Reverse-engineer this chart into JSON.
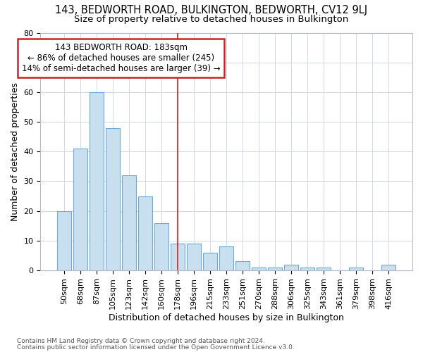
{
  "title": "143, BEDWORTH ROAD, BULKINGTON, BEDWORTH, CV12 9LJ",
  "subtitle": "Size of property relative to detached houses in Bulkington",
  "xlabel": "Distribution of detached houses by size in Bulkington",
  "ylabel": "Number of detached properties",
  "bar_labels": [
    "50sqm",
    "68sqm",
    "87sqm",
    "105sqm",
    "123sqm",
    "142sqm",
    "160sqm",
    "178sqm",
    "196sqm",
    "215sqm",
    "233sqm",
    "251sqm",
    "270sqm",
    "288sqm",
    "306sqm",
    "325sqm",
    "343sqm",
    "361sqm",
    "379sqm",
    "398sqm",
    "416sqm"
  ],
  "bar_values": [
    20,
    41,
    60,
    48,
    32,
    25,
    16,
    9,
    9,
    6,
    8,
    3,
    1,
    1,
    2,
    1,
    1,
    0,
    1,
    0,
    2
  ],
  "bar_color": "#c8dff0",
  "bar_edge_color": "#6aaad4",
  "vline_x_index": 7,
  "vline_color": "#cc2222",
  "ylim": [
    0,
    80
  ],
  "yticks": [
    0,
    10,
    20,
    30,
    40,
    50,
    60,
    70,
    80
  ],
  "annotation_text": "143 BEDWORTH ROAD: 183sqm\n← 86% of detached houses are smaller (245)\n14% of semi-detached houses are larger (39) →",
  "annotation_box_facecolor": "#ffffff",
  "annotation_border_color": "#cc2222",
  "footer_line1": "Contains HM Land Registry data © Crown copyright and database right 2024.",
  "footer_line2": "Contains public sector information licensed under the Open Government Licence v3.0.",
  "bg_color": "#ffffff",
  "plot_bg_color": "#ffffff",
  "grid_color": "#d0d8e8",
  "title_fontsize": 10.5,
  "subtitle_fontsize": 9.5,
  "ylabel_fontsize": 9,
  "xlabel_fontsize": 9,
  "tick_fontsize": 8,
  "footer_fontsize": 6.5,
  "annotation_fontsize": 8.5
}
